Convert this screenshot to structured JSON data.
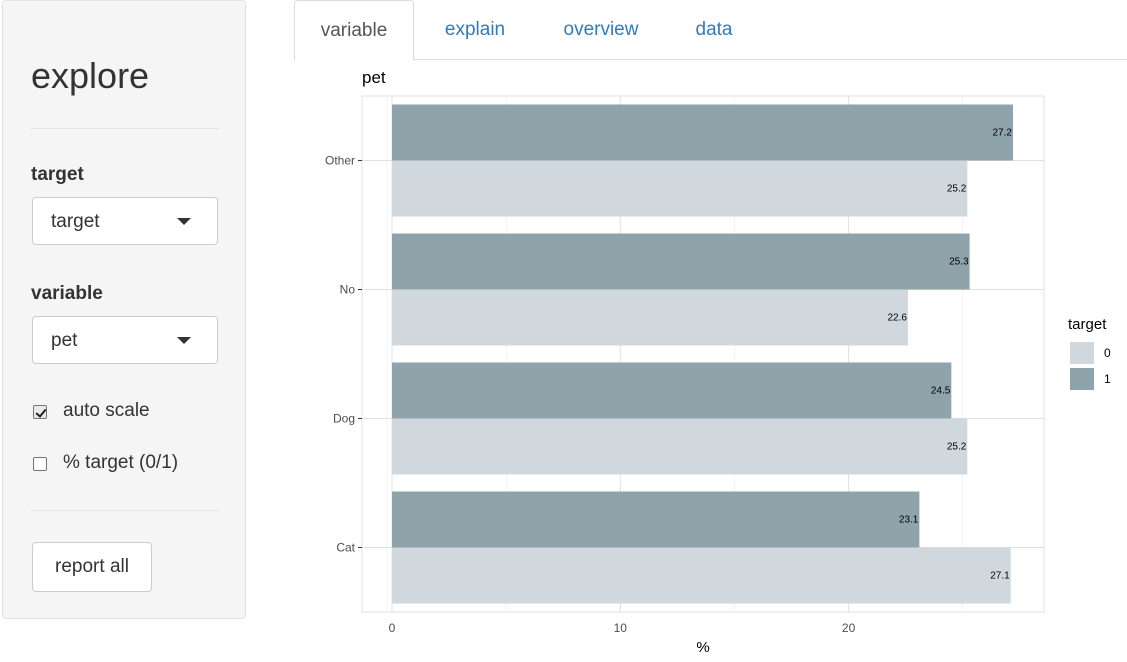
{
  "sidebar": {
    "title": "explore",
    "target_label": "target",
    "target_value": "target",
    "variable_label": "variable",
    "variable_value": "pet",
    "auto_scale_label": "auto scale",
    "auto_scale_checked": true,
    "pct_target_label": "% target (0/1)",
    "pct_target_checked": false,
    "report_button": "report all"
  },
  "tabs": [
    {
      "label": "variable",
      "active": true
    },
    {
      "label": "explain",
      "active": false
    },
    {
      "label": "overview",
      "active": false
    },
    {
      "label": "data",
      "active": false
    }
  ],
  "chart_data": {
    "type": "bar",
    "orientation": "horizontal",
    "title": "pet",
    "xlabel": "%",
    "ylabel": "",
    "categories": [
      "Other",
      "No",
      "Dog",
      "Cat"
    ],
    "series": [
      {
        "name": "1",
        "values": [
          27.2,
          25.3,
          24.5,
          23.1
        ],
        "color": "#8fa3ab"
      },
      {
        "name": "0",
        "values": [
          25.2,
          22.6,
          25.2,
          27.1
        ],
        "color": "#d0d8de"
      }
    ],
    "xlim": [
      0,
      28.5
    ],
    "xticks": [
      0,
      10,
      20
    ],
    "grid": true,
    "legend": {
      "title": "target",
      "entries": [
        "0",
        "1"
      ],
      "position": "right"
    }
  }
}
